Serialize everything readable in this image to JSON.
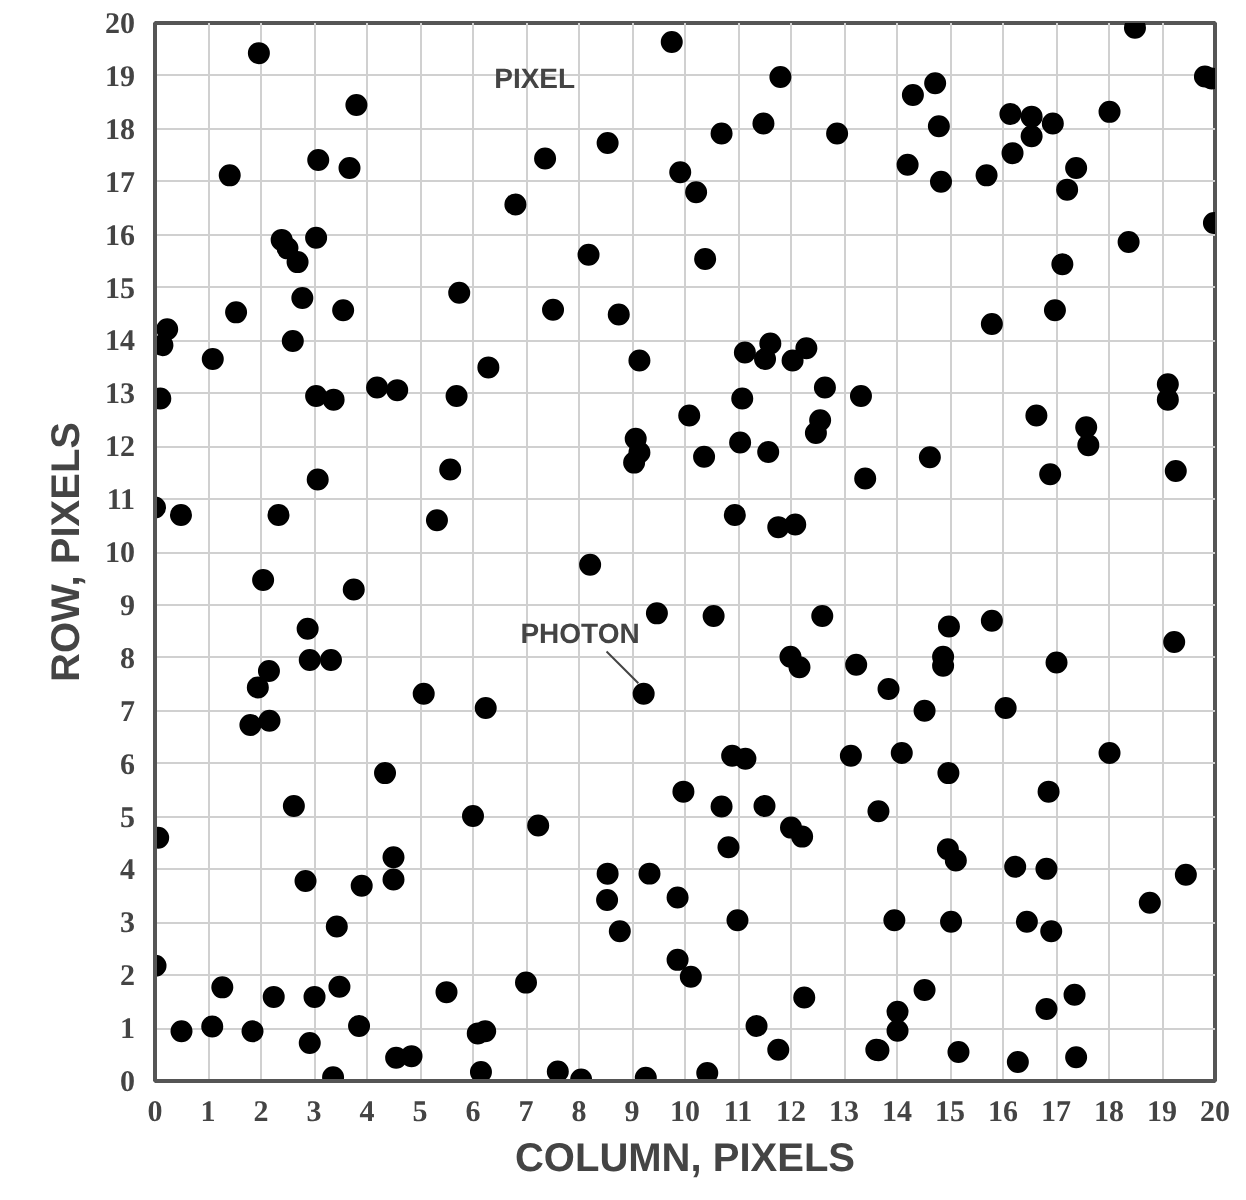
{
  "chart_data": {
    "type": "scatter",
    "xlabel": "COLUMN, PIXELS",
    "ylabel": "ROW, PIXELS",
    "xlim": [
      0,
      20
    ],
    "ylim": [
      0,
      20
    ],
    "xticks": [
      0,
      1,
      2,
      3,
      4,
      5,
      6,
      7,
      8,
      9,
      10,
      11,
      12,
      13,
      14,
      15,
      16,
      17,
      18,
      19,
      20
    ],
    "yticks": [
      0,
      1,
      2,
      3,
      4,
      5,
      6,
      7,
      8,
      9,
      10,
      11,
      12,
      13,
      14,
      15,
      16,
      17,
      18,
      19,
      20
    ],
    "grid": true,
    "marker": "circle",
    "annotations": [
      "PIXEL",
      {
        "text": "PHOTON",
        "x": 9.22,
        "y": 7.32
      }
    ],
    "series": [
      {
        "color": "#000000",
        "x": [
          1.96,
          3.8,
          3.08,
          3.67,
          1.41,
          6.8,
          2.39,
          2.5,
          2.69,
          3.04,
          2.78,
          1.53,
          3.55,
          5.74,
          0.23,
          0.14,
          1.09,
          2.6,
          6.29,
          0.1,
          3.04,
          3.37,
          4.19,
          4.57,
          5.69,
          3.07,
          5.57,
          0.0,
          0.49,
          2.33,
          5.32,
          9.75,
          11.8,
          10.69,
          11.48,
          12.87,
          7.36,
          8.54,
          9.91,
          10.21,
          8.18,
          10.38,
          7.51,
          8.75,
          9.14,
          11.13,
          11.61,
          11.51,
          12.03,
          12.29,
          12.64,
          13.32,
          11.08,
          10.08,
          12.55,
          12.47,
          9.07,
          9.14,
          9.04,
          10.36,
          11.04,
          11.57,
          13.4,
          10.94,
          11.76,
          12.08,
          8.21,
          18.49,
          19.81,
          19.94,
          14.3,
          14.72,
          14.79,
          16.14,
          16.54,
          16.94,
          16.54,
          18.01,
          14.2,
          14.83,
          15.69,
          16.18,
          17.38,
          17.21,
          19.98,
          18.37,
          17.12,
          16.98,
          15.79,
          16.63,
          17.57,
          17.61,
          19.11,
          19.11,
          14.62,
          16.89,
          19.26,
          2.04,
          3.75,
          2.88,
          2.92,
          3.32,
          2.15,
          1.94,
          5.07,
          6.24,
          1.8,
          2.16,
          4.34,
          2.62,
          6.0,
          0.06,
          4.5,
          4.5,
          2.84,
          3.9,
          3.43,
          0.01,
          1.27,
          3.48,
          2.24,
          3.01,
          5.5,
          7.0,
          0.5,
          1.08,
          1.84,
          2.92,
          3.85,
          4.55,
          4.84,
          6.09,
          6.23,
          6.15,
          3.36,
          9.47,
          10.54,
          12.59,
          9.22,
          11.99,
          12.16,
          13.23,
          10.89,
          11.14,
          13.13,
          9.97,
          10.69,
          11.5,
          13.65,
          7.23,
          12.0,
          12.21,
          10.82,
          8.54,
          9.33,
          8.53,
          9.86,
          8.77,
          10.99,
          9.86,
          10.11,
          12.25,
          11.35,
          11.76,
          13.61,
          7.6,
          8.04,
          9.26,
          10.42,
          14.98,
          15.79,
          19.23,
          14.87,
          14.87,
          17.01,
          13.84,
          14.52,
          16.05,
          14.09,
          18.01,
          14.97,
          16.86,
          14.96,
          15.11,
          16.23,
          16.82,
          19.45,
          18.77,
          13.95,
          15.02,
          16.45,
          16.91,
          14.52,
          17.35,
          14.01,
          14.01,
          16.82,
          13.65,
          15.16,
          16.28,
          17.38
        ],
        "values": [
          19.43,
          18.45,
          17.41,
          17.26,
          17.12,
          16.57,
          15.9,
          15.74,
          15.48,
          15.94,
          14.8,
          14.53,
          14.57,
          14.9,
          14.21,
          13.91,
          13.65,
          13.99,
          13.49,
          12.9,
          12.95,
          12.88,
          13.11,
          13.06,
          12.95,
          11.37,
          11.56,
          10.84,
          10.7,
          10.7,
          10.6,
          19.64,
          18.98,
          17.91,
          18.1,
          17.91,
          17.44,
          17.73,
          17.18,
          16.8,
          15.62,
          15.54,
          14.58,
          14.49,
          13.62,
          13.77,
          13.94,
          13.65,
          13.62,
          13.85,
          13.11,
          12.95,
          12.9,
          12.58,
          12.49,
          12.25,
          12.14,
          11.88,
          11.69,
          11.8,
          12.07,
          11.89,
          11.39,
          10.7,
          10.47,
          10.52,
          9.76,
          19.91,
          18.99,
          18.95,
          18.64,
          18.86,
          18.05,
          18.28,
          18.23,
          18.1,
          17.86,
          18.32,
          17.32,
          17.0,
          17.12,
          17.54,
          17.26,
          16.85,
          16.22,
          15.86,
          15.44,
          14.57,
          14.31,
          12.58,
          12.36,
          12.02,
          13.17,
          12.88,
          11.79,
          11.47,
          11.53,
          9.47,
          9.29,
          8.55,
          7.96,
          7.96,
          7.75,
          7.44,
          7.32,
          7.05,
          6.73,
          6.81,
          5.82,
          5.2,
          5.01,
          4.6,
          4.23,
          3.81,
          3.78,
          3.69,
          2.92,
          2.18,
          1.77,
          1.78,
          1.59,
          1.59,
          1.68,
          1.86,
          0.94,
          1.03,
          0.94,
          0.72,
          1.04,
          0.44,
          0.47,
          0.9,
          0.94,
          0.17,
          0.07,
          8.84,
          8.79,
          8.79,
          7.32,
          8.02,
          7.82,
          7.87,
          6.15,
          6.09,
          6.15,
          5.47,
          5.19,
          5.2,
          5.1,
          4.83,
          4.79,
          4.62,
          4.42,
          3.92,
          3.92,
          3.42,
          3.47,
          2.83,
          3.04,
          2.29,
          1.97,
          1.58,
          1.04,
          0.59,
          0.59,
          0.18,
          0.03,
          0.06,
          0.15,
          8.59,
          8.7,
          8.3,
          8.02,
          7.85,
          7.91,
          7.41,
          7.0,
          7.05,
          6.2,
          6.2,
          5.82,
          5.47,
          4.38,
          4.17,
          4.05,
          4.01,
          3.9,
          3.37,
          3.04,
          3.01,
          3.01,
          2.83,
          1.72,
          1.63,
          1.31,
          0.95,
          1.36,
          0.58,
          0.55,
          0.36,
          0.45
        ]
      }
    ]
  }
}
